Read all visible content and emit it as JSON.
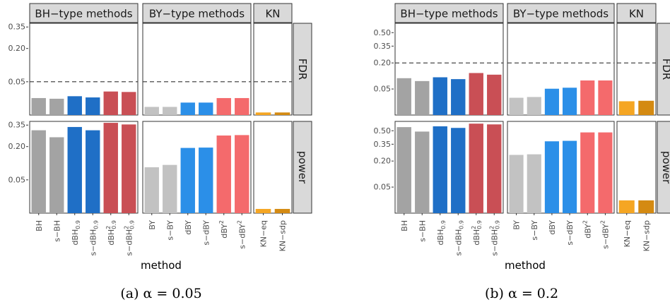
{
  "chart_data": [
    {
      "type": "bar",
      "caption": "(a) α = 0.05",
      "xlabel": "method",
      "facet_columns": [
        "BH−type methods",
        "BY−type methods",
        "KN"
      ],
      "facet_rows": [
        "FDR",
        "power"
      ],
      "threshold_line": {
        "row": "FDR",
        "value": 0.05,
        "style": "dashed"
      },
      "scale": "sqrt",
      "yticks": [
        0.05,
        0.2,
        0.35
      ],
      "ytick_labels": [
        "0.05",
        "0.20",
        "0.35"
      ],
      "ylim": [
        0,
        0.38
      ],
      "groups": [
        {
          "facet": "BH−type methods",
          "categories": [
            "BH",
            "s−BH",
            "dBH0.9",
            "s−dBH0.9",
            "dBH²0.9",
            "s−dBH²0.9"
          ],
          "colors": [
            "#a3a3a3",
            "#a3a3a3",
            "#1f6fc6",
            "#1f6fc6",
            "#c94f55",
            "#c94f55"
          ],
          "FDR": [
            0.013,
            0.012,
            0.016,
            0.014,
            0.025,
            0.024
          ],
          "power": [
            0.31,
            0.26,
            0.335,
            0.31,
            0.368,
            0.355
          ]
        },
        {
          "facet": "BY−type methods",
          "categories": [
            "BY",
            "s−BY",
            "dBY",
            "s−dBY",
            "dBY²",
            "s−dBY²"
          ],
          "colors": [
            "#c2c2c2",
            "#c2c2c2",
            "#2b8fe8",
            "#2b8fe8",
            "#f46a6c",
            "#f46a6c"
          ],
          "FDR": [
            0.003,
            0.003,
            0.007,
            0.007,
            0.013,
            0.013
          ],
          "power": [
            0.095,
            0.105,
            0.192,
            0.194,
            0.272,
            0.275
          ]
        },
        {
          "facet": "KN",
          "categories": [
            "KN−eq",
            "KN−sdp"
          ],
          "colors": [
            "#f5a623",
            "#d48a12"
          ],
          "FDR": [
            0.0003,
            0.0003
          ],
          "power": [
            0.0008,
            0.0008
          ]
        }
      ]
    },
    {
      "type": "bar",
      "caption": "(b) α = 0.2",
      "xlabel": "method",
      "facet_columns": [
        "BH−type methods",
        "BY−type methods",
        "KN"
      ],
      "facet_rows": [
        "FDR",
        "power"
      ],
      "threshold_line": {
        "row": "FDR",
        "value": 0.2,
        "style": "dashed"
      },
      "scale": "sqrt",
      "yticks": [
        0.05,
        0.2,
        0.35,
        0.5
      ],
      "ytick_labels": [
        "0.05",
        "0.20",
        "0.35",
        "0.50"
      ],
      "ylim": [
        0,
        0.62
      ],
      "groups": [
        {
          "facet": "BH−type methods",
          "categories": [
            "BH",
            "s−BH",
            "dBH0.9",
            "s−dBH0.9",
            "dBH²0.9",
            "s−dBH²0.9"
          ],
          "colors": [
            "#a3a3a3",
            "#a3a3a3",
            "#1f6fc6",
            "#1f6fc6",
            "#c94f55",
            "#c94f55"
          ],
          "FDR": [
            0.1,
            0.085,
            0.105,
            0.095,
            0.13,
            0.12
          ],
          "power": [
            0.545,
            0.49,
            0.555,
            0.535,
            0.59,
            0.58
          ]
        },
        {
          "facet": "BY−type methods",
          "categories": [
            "BY",
            "s−BY",
            "dBY",
            "s−dBY",
            "dBY²",
            "s−dBY²"
          ],
          "colors": [
            "#c2c2c2",
            "#c2c2c2",
            "#2b8fe8",
            "#2b8fe8",
            "#f46a6c",
            "#f46a6c"
          ],
          "FDR": [
            0.022,
            0.024,
            0.051,
            0.055,
            0.088,
            0.088
          ],
          "power": [
            0.25,
            0.255,
            0.38,
            0.385,
            0.48,
            0.48
          ]
        },
        {
          "facet": "KN",
          "categories": [
            "KN−eq",
            "KN−sdp"
          ],
          "colors": [
            "#f5a623",
            "#d48a12"
          ],
          "FDR": [
            0.014,
            0.015
          ],
          "power": [
            0.012,
            0.012
          ]
        }
      ]
    }
  ]
}
